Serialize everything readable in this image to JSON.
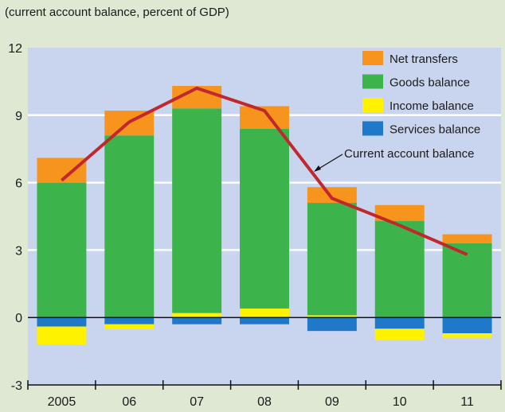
{
  "chart_data": {
    "type": "bar",
    "title": "(current account balance, percent of GDP)",
    "categories": [
      "2005",
      "06",
      "07",
      "08",
      "09",
      "10",
      "11"
    ],
    "ylim": [
      -3,
      12
    ],
    "yticks": [
      -3,
      0,
      3,
      6,
      9,
      12
    ],
    "grid": true,
    "legend_position": "top-right",
    "series": [
      {
        "name": "Services balance",
        "color": "#1f78c8",
        "values": [
          -0.4,
          -0.3,
          -0.3,
          -0.3,
          -0.6,
          -0.5,
          -0.7
        ]
      },
      {
        "name": "Income balance",
        "color": "#fff200",
        "values": [
          -0.8,
          -0.2,
          0.2,
          0.4,
          0.1,
          -0.5,
          -0.2
        ]
      },
      {
        "name": "Goods balance",
        "color": "#3cb44b",
        "values": [
          6.0,
          8.1,
          9.1,
          8.0,
          5.0,
          4.3,
          3.3
        ]
      },
      {
        "name": "Net transfers",
        "color": "#f7941d",
        "values": [
          1.1,
          1.1,
          1.0,
          1.0,
          0.7,
          0.7,
          0.4
        ]
      }
    ],
    "line": {
      "name": "Current account balance",
      "color": "#c0282d",
      "values": [
        6.1,
        8.7,
        10.2,
        9.2,
        5.3,
        4.1,
        2.8
      ]
    },
    "annotation": "Current account balance"
  }
}
